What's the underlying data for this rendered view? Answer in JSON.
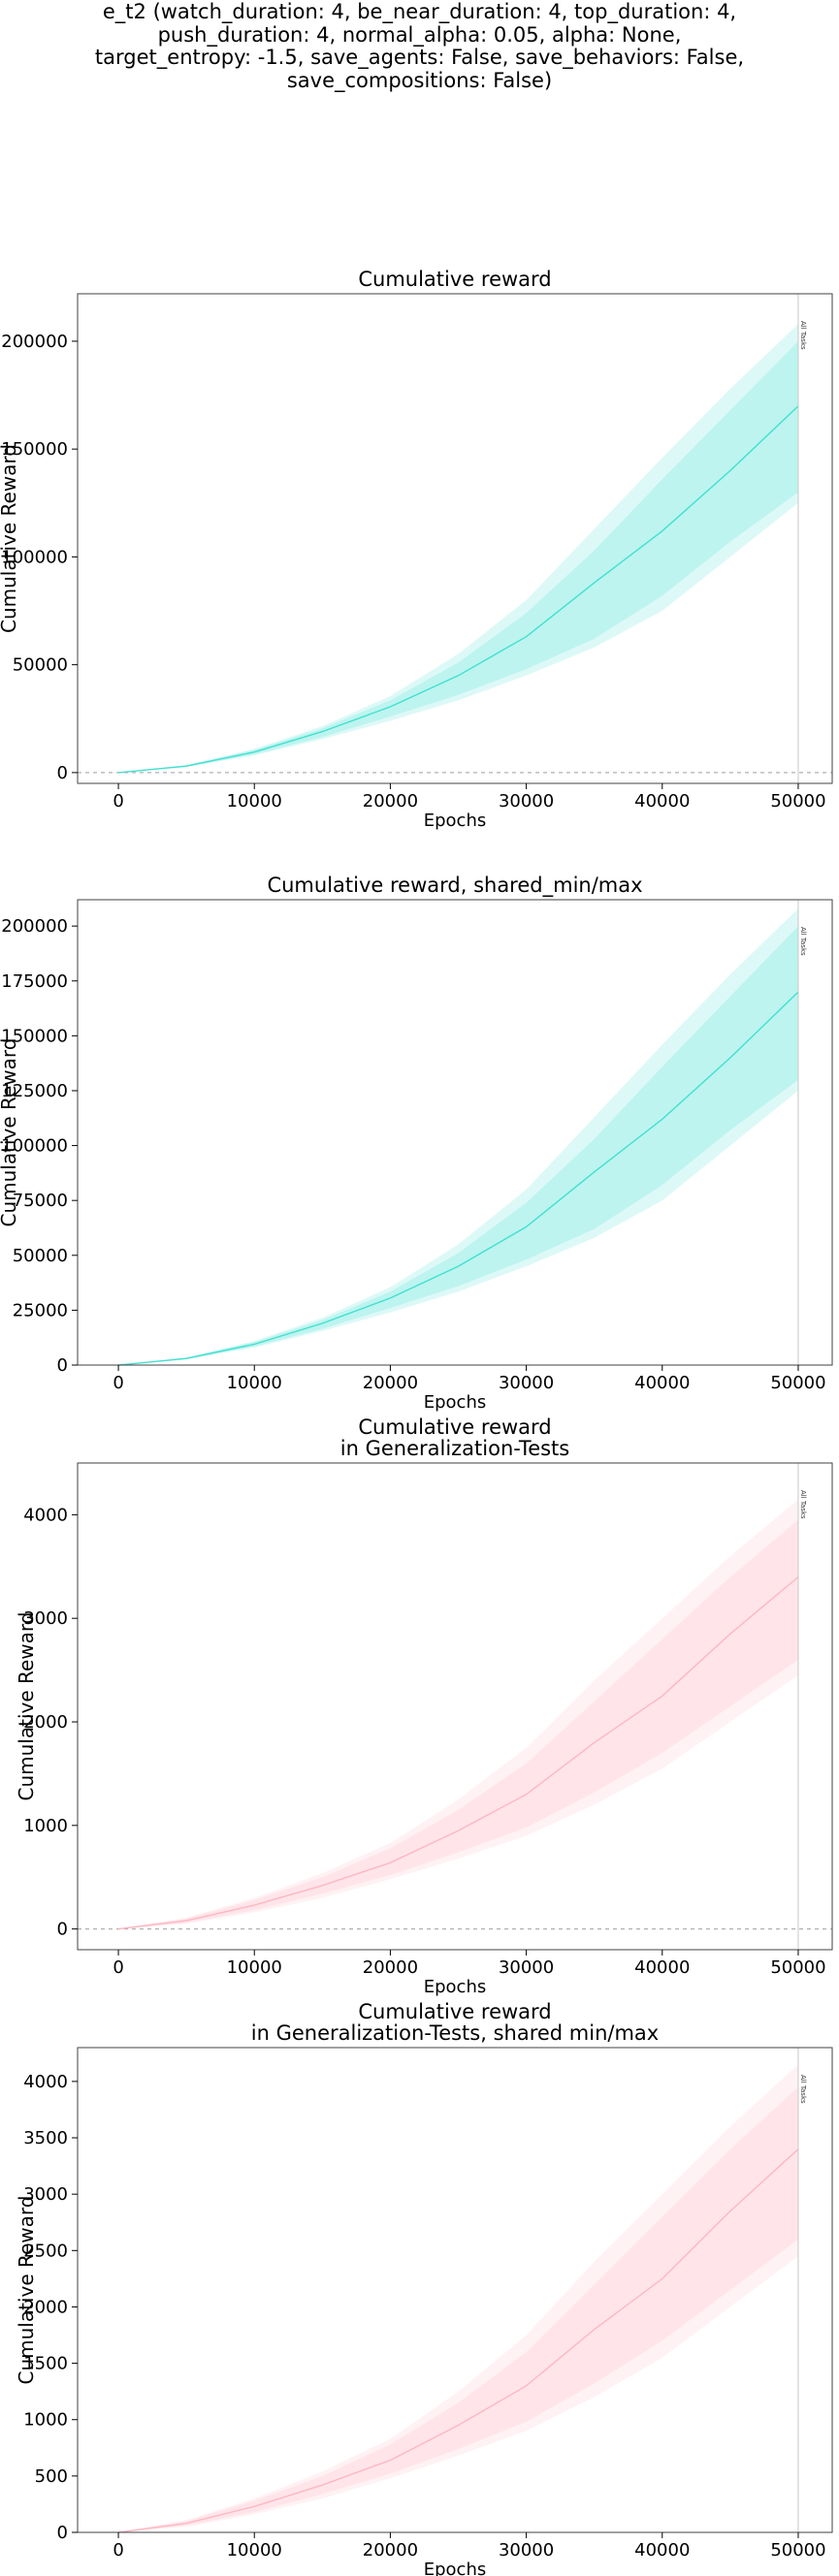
{
  "suptitle_lines": [
    "e_t2 (watch_duration: 4, be_near_duration: 4, top_duration: 4,",
    "push_duration: 4, normal_alpha: 0.05, alpha: None,",
    "target_entropy: -1.5, save_agents: False, save_behaviors: False,",
    "save_compositions: False)"
  ],
  "chart_data": [
    {
      "type": "line",
      "title": [
        "Cumulative reward"
      ],
      "xlabel": "Epochs",
      "ylabel": "Cumulative Reward",
      "xlim": [
        -3000,
        52500
      ],
      "ylim": [
        -5000,
        222000
      ],
      "xticks": [
        0,
        10000,
        20000,
        30000,
        40000,
        50000
      ],
      "yticks": [
        0,
        50000,
        100000,
        150000,
        200000
      ],
      "zero_line": true,
      "color": "#40e0d0",
      "vline_x": 50000,
      "vline_label": "All Tasks",
      "grid": false,
      "x": [
        0,
        5000,
        10000,
        15000,
        20000,
        25000,
        30000,
        35000,
        40000,
        45000,
        50000
      ],
      "series": [
        {
          "values": [
            0,
            3000,
            9500,
            19000,
            30500,
            45000,
            63000,
            88000,
            112000,
            140000,
            170000
          ],
          "band_min": [
            0,
            2500,
            8000,
            15500,
            24000,
            33500,
            45000,
            58000,
            75000,
            100000,
            125000
          ],
          "band_max": [
            0,
            3500,
            11000,
            21500,
            35500,
            55000,
            80000,
            113000,
            146000,
            178000,
            208000
          ],
          "inner_min": [
            0,
            2700,
            8500,
            16500,
            26000,
            36000,
            48000,
            62000,
            82000,
            107000,
            130000
          ],
          "inner_max": [
            0,
            3300,
            10500,
            20500,
            33500,
            51000,
            74000,
            103000,
            136000,
            168000,
            200000
          ]
        }
      ]
    },
    {
      "type": "line",
      "title": [
        "Cumulative reward, shared_min/max"
      ],
      "xlabel": "Epochs",
      "ylabel": "Cumulative Reward",
      "xlim": [
        -3000,
        52500
      ],
      "ylim": [
        0,
        212000
      ],
      "xticks": [
        0,
        10000,
        20000,
        30000,
        40000,
        50000
      ],
      "yticks": [
        0,
        25000,
        50000,
        75000,
        100000,
        125000,
        150000,
        175000,
        200000
      ],
      "zero_line": false,
      "color": "#40e0d0",
      "vline_x": 50000,
      "vline_label": "All Tasks",
      "grid": false,
      "x": [
        0,
        5000,
        10000,
        15000,
        20000,
        25000,
        30000,
        35000,
        40000,
        45000,
        50000
      ],
      "series": [
        {
          "values": [
            0,
            3000,
            9500,
            19000,
            30500,
            45000,
            63000,
            88000,
            112000,
            140000,
            170000
          ],
          "band_min": [
            0,
            2500,
            8000,
            15500,
            24000,
            33500,
            45000,
            58000,
            75000,
            100000,
            125000
          ],
          "band_max": [
            0,
            3500,
            11000,
            21500,
            35500,
            55000,
            80000,
            113000,
            146000,
            178000,
            208000
          ],
          "inner_min": [
            0,
            2700,
            8500,
            16500,
            26000,
            36000,
            48000,
            62000,
            82000,
            107000,
            130000
          ],
          "inner_max": [
            0,
            3300,
            10500,
            20500,
            33500,
            51000,
            74000,
            103000,
            136000,
            168000,
            200000
          ]
        }
      ]
    },
    {
      "type": "line",
      "title": [
        "Cumulative reward",
        "in Generalization-Tests"
      ],
      "xlabel": "Epochs",
      "ylabel": "Cumulative Reward",
      "xlim": [
        -3000,
        52500
      ],
      "ylim": [
        -200,
        4500
      ],
      "xticks": [
        0,
        10000,
        20000,
        30000,
        40000,
        50000
      ],
      "yticks": [
        0,
        1000,
        2000,
        3000,
        4000
      ],
      "zero_line": true,
      "color": "#ffb6c1",
      "vline_x": 50000,
      "vline_label": "All Tasks",
      "grid": false,
      "x": [
        0,
        5000,
        10000,
        15000,
        20000,
        25000,
        30000,
        35000,
        40000,
        45000,
        50000
      ],
      "series": [
        {
          "values": [
            0,
            80,
            230,
            420,
            640,
            950,
            1300,
            1800,
            2250,
            2850,
            3400
          ],
          "band_min": [
            0,
            50,
            160,
            300,
            480,
            680,
            900,
            1200,
            1550,
            2000,
            2450
          ],
          "band_max": [
            0,
            110,
            300,
            540,
            830,
            1250,
            1750,
            2400,
            3000,
            3600,
            4150
          ],
          "inner_min": [
            0,
            60,
            180,
            340,
            520,
            740,
            980,
            1320,
            1700,
            2150,
            2600
          ],
          "inner_max": [
            0,
            100,
            280,
            500,
            780,
            1150,
            1600,
            2200,
            2800,
            3400,
            3950
          ]
        }
      ]
    },
    {
      "type": "line",
      "title": [
        "Cumulative reward",
        "in Generalization-Tests, shared min/max"
      ],
      "xlabel": "Epochs",
      "ylabel": "Cumulative Reward",
      "xlim": [
        -3000,
        52500
      ],
      "ylim": [
        0,
        4300
      ],
      "xticks": [
        0,
        10000,
        20000,
        30000,
        40000,
        50000
      ],
      "yticks": [
        0,
        500,
        1000,
        1500,
        2000,
        2500,
        3000,
        3500,
        4000
      ],
      "zero_line": false,
      "color": "#ffb6c1",
      "vline_x": 50000,
      "vline_label": "All Tasks",
      "grid": false,
      "x": [
        0,
        5000,
        10000,
        15000,
        20000,
        25000,
        30000,
        35000,
        40000,
        45000,
        50000
      ],
      "series": [
        {
          "values": [
            0,
            80,
            230,
            420,
            640,
            950,
            1300,
            1800,
            2250,
            2850,
            3400
          ],
          "band_min": [
            0,
            50,
            160,
            300,
            480,
            680,
            900,
            1200,
            1550,
            2000,
            2450
          ],
          "band_max": [
            0,
            110,
            300,
            540,
            830,
            1250,
            1750,
            2400,
            3000,
            3600,
            4150
          ],
          "inner_min": [
            0,
            60,
            180,
            340,
            520,
            740,
            980,
            1320,
            1700,
            2150,
            2600
          ],
          "inner_max": [
            0,
            100,
            280,
            500,
            780,
            1150,
            1600,
            2200,
            2800,
            3400,
            3950
          ]
        }
      ]
    }
  ]
}
